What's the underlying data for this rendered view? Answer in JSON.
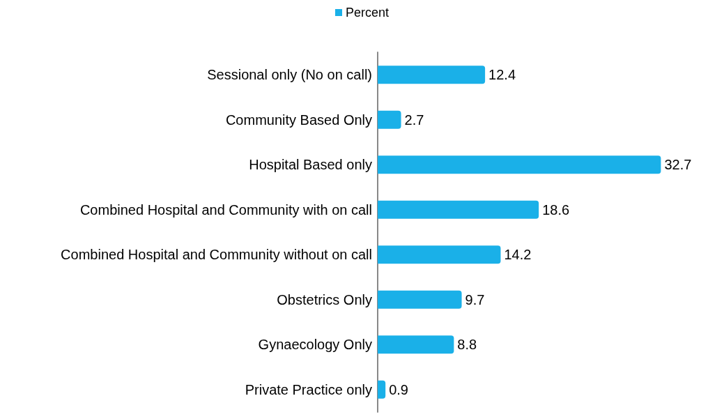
{
  "chart_data": {
    "type": "bar",
    "orientation": "horizontal",
    "categories": [
      "Sessional only (No on call)",
      "Community Based Only",
      "Hospital Based only",
      "Combined Hospital and Community with on call",
      "Combined Hospital and Community without on call",
      "Obstetrics Only",
      "Gynaecology Only",
      "Private Practice only"
    ],
    "series": [
      {
        "name": "Percent",
        "color": "#1ab0e8",
        "values": [
          12.4,
          2.7,
          32.7,
          18.6,
          14.2,
          9.7,
          8.8,
          0.9
        ]
      }
    ],
    "data_labels": true,
    "legend": "top"
  }
}
